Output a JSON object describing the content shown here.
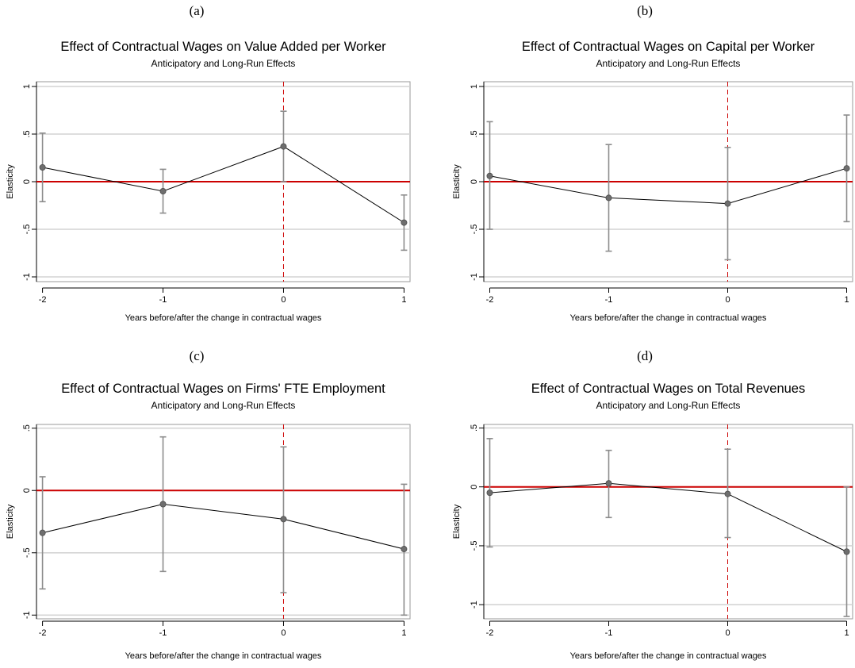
{
  "figure": {
    "title": ""
  },
  "chart_data": [
    {
      "type": "line",
      "panel_label": "(a)",
      "title": "Effect of Contractual Wages on Value Added per Worker",
      "subtitle": "Anticipatory and Long-Run Effects",
      "xlabel": "Years before/after the change in contractual wages",
      "ylabel": "Elasticity",
      "x": [
        -2,
        -1,
        0,
        1
      ],
      "x_ticks": [
        "-2",
        "-1",
        "0",
        "1"
      ],
      "y_ticks": [
        {
          "value": 1,
          "label": "1"
        },
        {
          "value": 0.5,
          "label": ".5"
        },
        {
          "value": 0,
          "label": "0"
        },
        {
          "value": -0.5,
          "label": "-.5"
        },
        {
          "value": -1,
          "label": "-1"
        }
      ],
      "ylim": [
        -1.05,
        1.05
      ],
      "xlim": [
        -2.05,
        1.05
      ],
      "series": [
        {
          "values": [
            0.15,
            -0.1,
            0.37,
            -0.43
          ],
          "ci_low": [
            -0.21,
            -0.33,
            0.0,
            -0.72
          ],
          "ci_high": [
            0.51,
            0.13,
            0.74,
            -0.14
          ]
        }
      ],
      "reference_lines": {
        "horizontal_y": 0,
        "horizontal_color": "#cc0000",
        "vertical_x": 0,
        "vertical_color": "#cc0000",
        "vertical_style": "dashed"
      },
      "grid": true
    },
    {
      "type": "line",
      "panel_label": "(b)",
      "title": "Effect of Contractual Wages on Capital per Worker",
      "subtitle": "Anticipatory and Long-Run Effects",
      "xlabel": "Years before/after the change in contractual wages",
      "ylabel": "Elasticity",
      "x": [
        -2,
        -1,
        0,
        1
      ],
      "x_ticks": [
        "-2",
        "-1",
        "0",
        "1"
      ],
      "y_ticks": [
        {
          "value": 1,
          "label": "1"
        },
        {
          "value": 0.5,
          "label": ".5"
        },
        {
          "value": 0,
          "label": "0"
        },
        {
          "value": -0.5,
          "label": "-.5"
        },
        {
          "value": -1,
          "label": "-1"
        }
      ],
      "ylim": [
        -1.05,
        1.05
      ],
      "xlim": [
        -2.05,
        1.05
      ],
      "series": [
        {
          "values": [
            0.06,
            -0.17,
            -0.23,
            0.14
          ],
          "ci_low": [
            -0.5,
            -0.73,
            -0.82,
            -0.42
          ],
          "ci_high": [
            0.63,
            0.39,
            0.36,
            0.7
          ]
        }
      ],
      "reference_lines": {
        "horizontal_y": 0,
        "horizontal_color": "#cc0000",
        "vertical_x": 0,
        "vertical_color": "#cc0000",
        "vertical_style": "dashed"
      },
      "grid": true
    },
    {
      "type": "line",
      "panel_label": "(c)",
      "title": "Effect of Contractual Wages on Firms' FTE Employment",
      "subtitle": "Anticipatory and Long-Run Effects",
      "xlabel": "Years before/after the change in contractual wages",
      "ylabel": "Elasticity",
      "x": [
        -2,
        -1,
        0,
        1
      ],
      "x_ticks": [
        "-2",
        "-1",
        "0",
        "1"
      ],
      "y_ticks": [
        {
          "value": 0.5,
          "label": ".5"
        },
        {
          "value": 0,
          "label": "0"
        },
        {
          "value": -0.5,
          "label": "-.5"
        },
        {
          "value": -1,
          "label": "-1"
        }
      ],
      "ylim": [
        -1.03,
        0.53
      ],
      "xlim": [
        -2.05,
        1.05
      ],
      "series": [
        {
          "values": [
            -0.34,
            -0.11,
            -0.23,
            -0.47
          ],
          "ci_low": [
            -0.79,
            -0.65,
            -0.82,
            -1.0
          ],
          "ci_high": [
            0.11,
            0.43,
            0.35,
            0.05
          ]
        }
      ],
      "reference_lines": {
        "horizontal_y": 0,
        "horizontal_color": "#cc0000",
        "vertical_x": 0,
        "vertical_color": "#cc0000",
        "vertical_style": "dashed"
      },
      "grid": true
    },
    {
      "type": "line",
      "panel_label": "(d)",
      "title": "Effect of Contractual Wages on Total Revenues",
      "subtitle": "Anticipatory and Long-Run Effects",
      "xlabel": "Years before/after the change in contractual wages",
      "ylabel": "Elasticity",
      "x": [
        -2,
        -1,
        0,
        1
      ],
      "x_ticks": [
        "-2",
        "-1",
        "0",
        "1"
      ],
      "y_ticks": [
        {
          "value": 0.5,
          "label": ".5"
        },
        {
          "value": 0,
          "label": "0"
        },
        {
          "value": -0.5,
          "label": "-.5"
        },
        {
          "value": -1,
          "label": "-1"
        }
      ],
      "ylim": [
        -1.12,
        0.53
      ],
      "xlim": [
        -2.05,
        1.05
      ],
      "series": [
        {
          "values": [
            -0.05,
            0.03,
            -0.06,
            -0.55
          ],
          "ci_low": [
            -0.51,
            -0.26,
            -0.43,
            -1.1
          ],
          "ci_high": [
            0.41,
            0.31,
            0.32,
            0.0
          ]
        }
      ],
      "reference_lines": {
        "horizontal_y": 0,
        "horizontal_color": "#cc0000",
        "vertical_x": 0,
        "vertical_color": "#cc0000",
        "vertical_style": "dashed"
      },
      "grid": true
    }
  ]
}
